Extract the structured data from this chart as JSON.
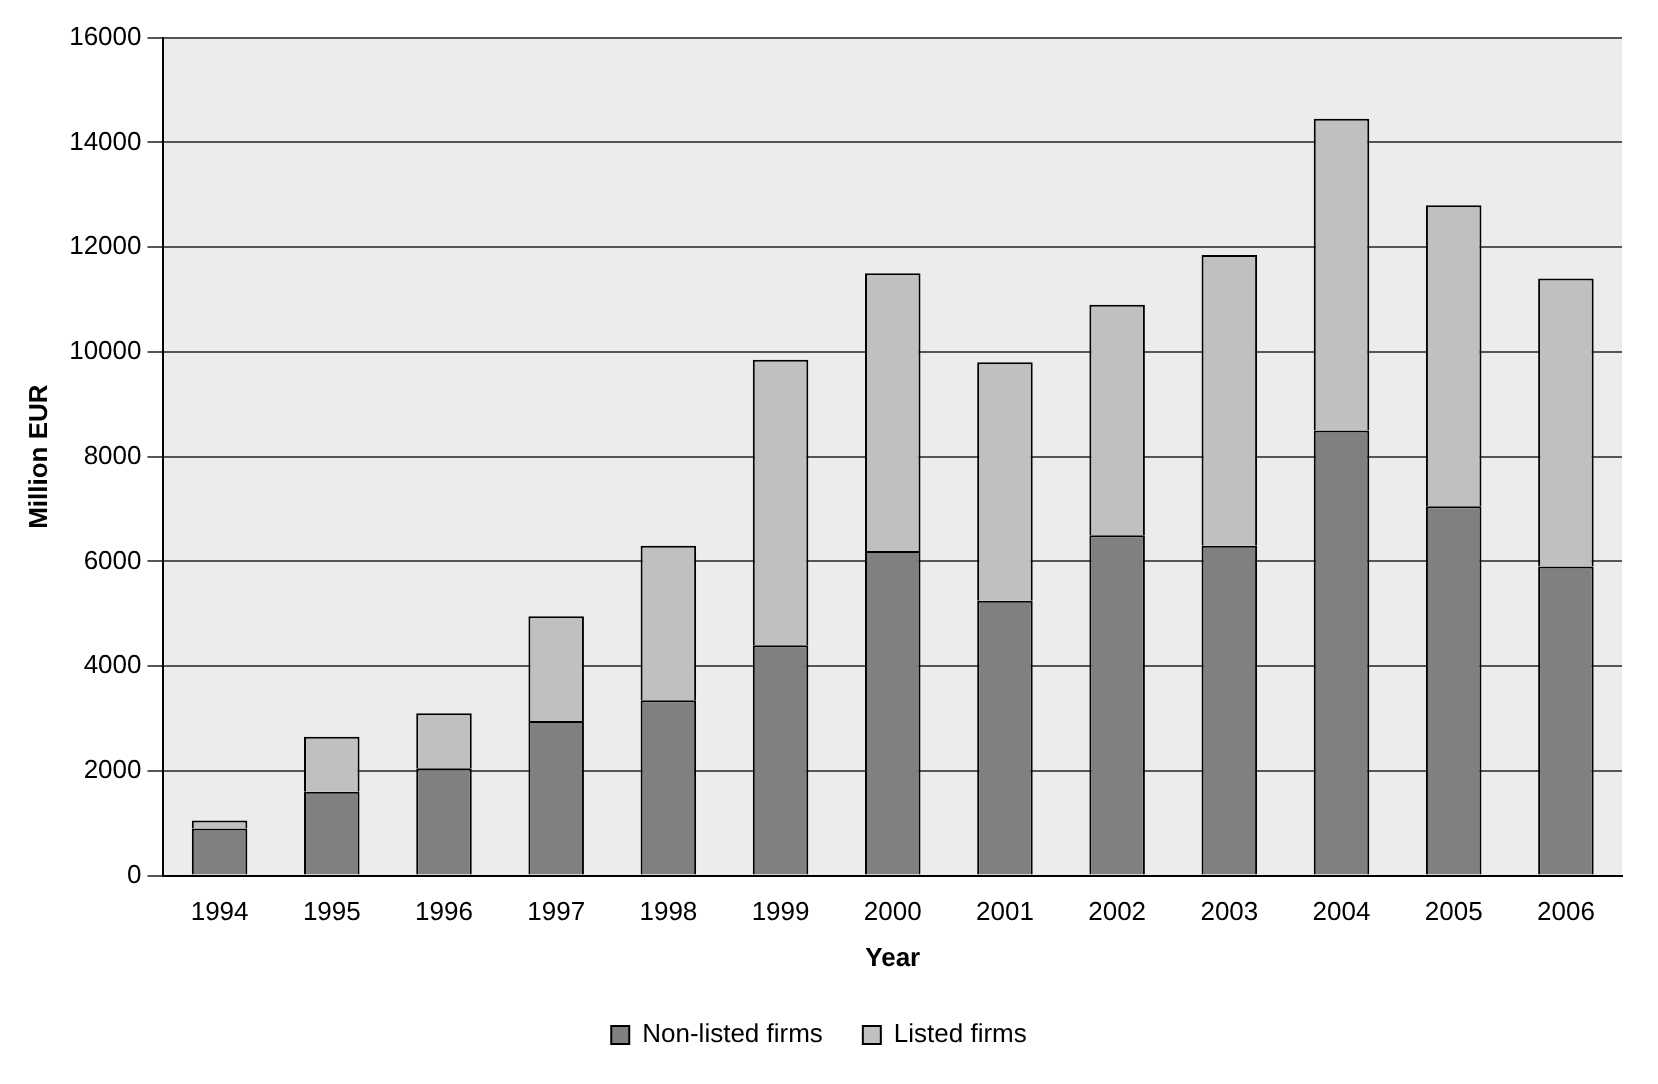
{
  "chart_data": {
    "type": "bar",
    "stacked": true,
    "xlabel": "Year",
    "ylabel": "Million EUR",
    "categories": [
      "1994",
      "1995",
      "1996",
      "1997",
      "1998",
      "1999",
      "2000",
      "2001",
      "2002",
      "2003",
      "2004",
      "2005",
      "2006"
    ],
    "series": [
      {
        "name": "Non-listed firms",
        "color": "#808080",
        "values": [
          900,
          1600,
          2050,
          2950,
          3350,
          4400,
          6200,
          5250,
          6500,
          6300,
          8500,
          7050,
          5900
        ]
      },
      {
        "name": "Listed firms",
        "color": "#c0c0c0",
        "values": [
          150,
          1050,
          1050,
          2000,
          2950,
          5450,
          5300,
          4550,
          4400,
          5550,
          5950,
          5750,
          5500
        ]
      }
    ],
    "ylim": [
      0,
      16000
    ],
    "yticks": [
      0,
      2000,
      4000,
      6000,
      8000,
      10000,
      12000,
      14000,
      16000
    ],
    "grid": "y",
    "legend": "bottom"
  }
}
